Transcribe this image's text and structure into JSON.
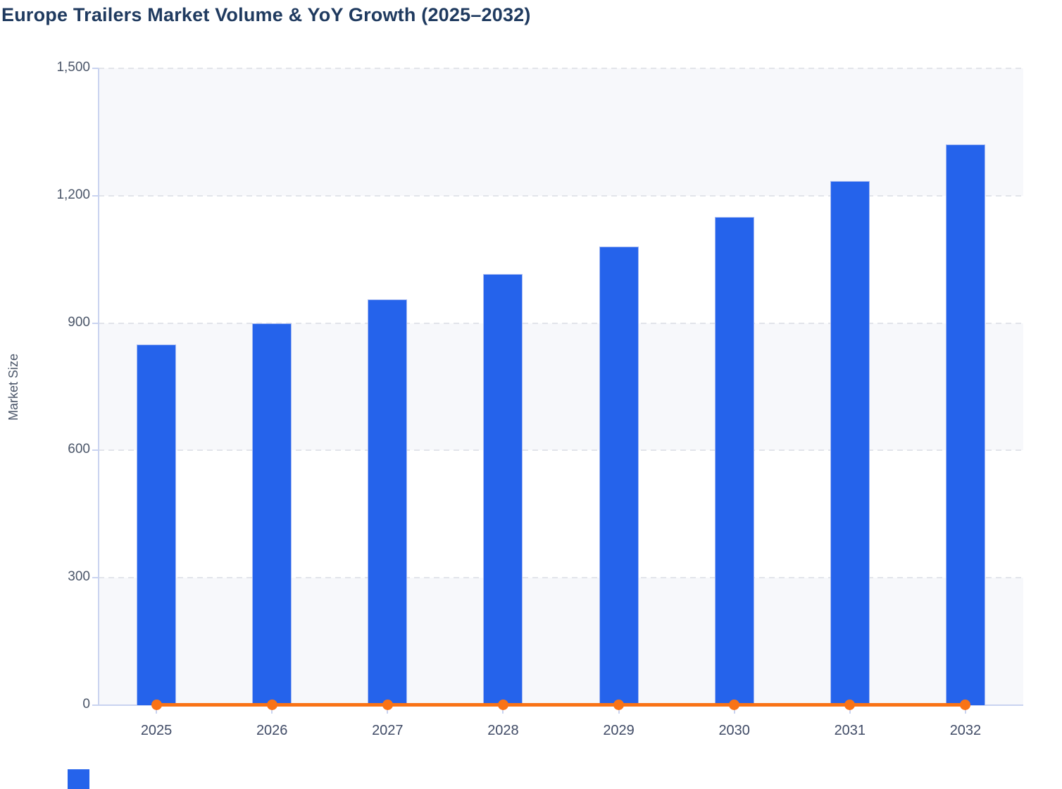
{
  "chart_data": {
    "type": "bar",
    "title": "Europe Trailers Market Volume & YoY Growth (2025–2032)",
    "xlabel": "",
    "ylabel": "Market Size",
    "categories": [
      "2025",
      "2026",
      "2027",
      "2028",
      "2029",
      "2030",
      "2031",
      "2032"
    ],
    "series": [
      {
        "name": "Market Size",
        "type": "bar",
        "values": [
          850,
          900,
          955,
          1015,
          1080,
          1150,
          1235,
          1320
        ]
      },
      {
        "name": "YoY Growth",
        "type": "line",
        "values": [
          0,
          0,
          0,
          0,
          0,
          0,
          0,
          0
        ]
      }
    ],
    "ylim": [
      0,
      1500
    ],
    "ytick_values": [
      0,
      300,
      600,
      900,
      1200,
      1500
    ],
    "ytick_labels": [
      "0",
      "300",
      "600",
      "900",
      "1,200",
      "1,500"
    ],
    "grid": "horizontal-dashed",
    "plot_bands": "alternating-horizontal",
    "legend_position": "bottom-cropped"
  },
  "colors": {
    "bar_fill": "#2563eb",
    "bar_border": "#a5b9f2",
    "line": "#f97316",
    "title_text": "#1f3a5f",
    "axis_text": "#4a5568",
    "xtick_text": "#404b66",
    "gridline": "#e2e4ea",
    "axis_line": "#c9d3f0",
    "band_fill": "#f7f8fb",
    "background": "#ffffff"
  }
}
